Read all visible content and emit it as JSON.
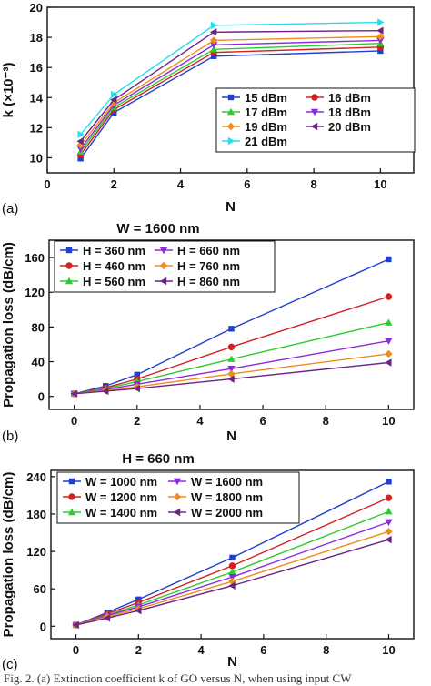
{
  "caption": "Fig. 2. (a) Extinction coefficient k of GO versus N, when using input CW",
  "chart_data": [
    {
      "type": "line",
      "panel_label": "(a)",
      "title": "",
      "xlabel": "N",
      "ylabel": "k (×10⁻³)",
      "xlim": [
        0,
        11
      ],
      "ylim": [
        9,
        20
      ],
      "xticks": [
        0,
        2,
        4,
        6,
        8,
        10
      ],
      "yticks": [
        10,
        12,
        14,
        16,
        18,
        20
      ],
      "legend_position": "center-right",
      "legend_columns": 2,
      "x": [
        1,
        2,
        5,
        10
      ],
      "series": [
        {
          "name": "15 dBm",
          "color": "#1f3fd0",
          "marker": "square",
          "values": [
            9.95,
            13.0,
            16.75,
            17.1
          ]
        },
        {
          "name": "16 dBm",
          "color": "#d42020",
          "marker": "circle",
          "values": [
            10.2,
            13.2,
            17.0,
            17.35
          ]
        },
        {
          "name": "17 dBm",
          "color": "#2ecc2e",
          "marker": "triangle-up",
          "values": [
            10.4,
            13.35,
            17.2,
            17.6
          ]
        },
        {
          "name": "18 dBm",
          "color": "#8a2be2",
          "marker": "triangle-down",
          "values": [
            10.6,
            13.5,
            17.5,
            17.8
          ]
        },
        {
          "name": "19 dBm",
          "color": "#f08c1a",
          "marker": "diamond",
          "values": [
            10.85,
            13.65,
            17.8,
            18.05
          ]
        },
        {
          "name": "20 dBm",
          "color": "#6b2585",
          "marker": "triangle-left",
          "values": [
            11.1,
            13.85,
            18.35,
            18.45
          ]
        },
        {
          "name": "21 dBm",
          "color": "#22e0f0",
          "marker": "triangle-right",
          "values": [
            11.55,
            14.2,
            18.8,
            19.0
          ]
        }
      ]
    },
    {
      "type": "line",
      "panel_label": "(b)",
      "title": "W = 1600 nm",
      "xlabel": "N",
      "ylabel": "Propagation loss (dB/cm)",
      "xlim": [
        -0.8,
        10.8
      ],
      "ylim": [
        -15,
        180
      ],
      "xticks": [
        0,
        2,
        4,
        6,
        8,
        10
      ],
      "yticks": [
        0,
        40,
        80,
        120,
        160
      ],
      "legend_position": "top-left",
      "legend_columns": 2,
      "x": [
        0,
        1,
        2,
        5,
        10
      ],
      "series": [
        {
          "name": "H = 360 nm",
          "color": "#1f3fd0",
          "marker": "square",
          "values": [
            3,
            12,
            25,
            78,
            158
          ]
        },
        {
          "name": "H = 460 nm",
          "color": "#d42020",
          "marker": "circle",
          "values": [
            3,
            10,
            20,
            57,
            115
          ]
        },
        {
          "name": "H = 560 nm",
          "color": "#2ecc2e",
          "marker": "triangle-up",
          "values": [
            3,
            9,
            17,
            43,
            85
          ]
        },
        {
          "name": "H = 660 nm",
          "color": "#8a2be2",
          "marker": "triangle-down",
          "values": [
            3,
            8,
            14,
            32,
            64
          ]
        },
        {
          "name": "H = 760 nm",
          "color": "#f08c1a",
          "marker": "diamond",
          "values": [
            3,
            7,
            11,
            26,
            49
          ]
        },
        {
          "name": "H = 860 nm",
          "color": "#6b2585",
          "marker": "triangle-left",
          "values": [
            3,
            6,
            9,
            20,
            39
          ]
        }
      ]
    },
    {
      "type": "line",
      "panel_label": "(c)",
      "title": "H = 660 nm",
      "xlabel": "N",
      "ylabel": "Propagation loss (dB/cm)",
      "xlim": [
        -0.8,
        10.8
      ],
      "ylim": [
        -20,
        250
      ],
      "xticks": [
        0,
        2,
        4,
        6,
        8,
        10
      ],
      "yticks": [
        0,
        60,
        120,
        180,
        240
      ],
      "legend_position": "top-left",
      "legend_columns": 2,
      "x": [
        0,
        1,
        2,
        5,
        10
      ],
      "series": [
        {
          "name": "W = 1000 nm",
          "color": "#1f3fd0",
          "marker": "square",
          "values": [
            2,
            22,
            43,
            110,
            232
          ]
        },
        {
          "name": "W = 1200 nm",
          "color": "#d42020",
          "marker": "circle",
          "values": [
            2,
            20,
            38,
            97,
            206
          ]
        },
        {
          "name": "W = 1400 nm",
          "color": "#2ecc2e",
          "marker": "triangle-up",
          "values": [
            2,
            18,
            34,
            87,
            184
          ]
        },
        {
          "name": "W = 1600 nm",
          "color": "#8a2be2",
          "marker": "triangle-down",
          "values": [
            2,
            17,
            31,
            79,
            167
          ]
        },
        {
          "name": "W = 1800 nm",
          "color": "#f08c1a",
          "marker": "diamond",
          "values": [
            2,
            15,
            28,
            72,
            152
          ]
        },
        {
          "name": "W = 2000 nm",
          "color": "#6b2585",
          "marker": "triangle-left",
          "values": [
            2,
            13,
            25,
            65,
            139
          ]
        }
      ]
    }
  ]
}
